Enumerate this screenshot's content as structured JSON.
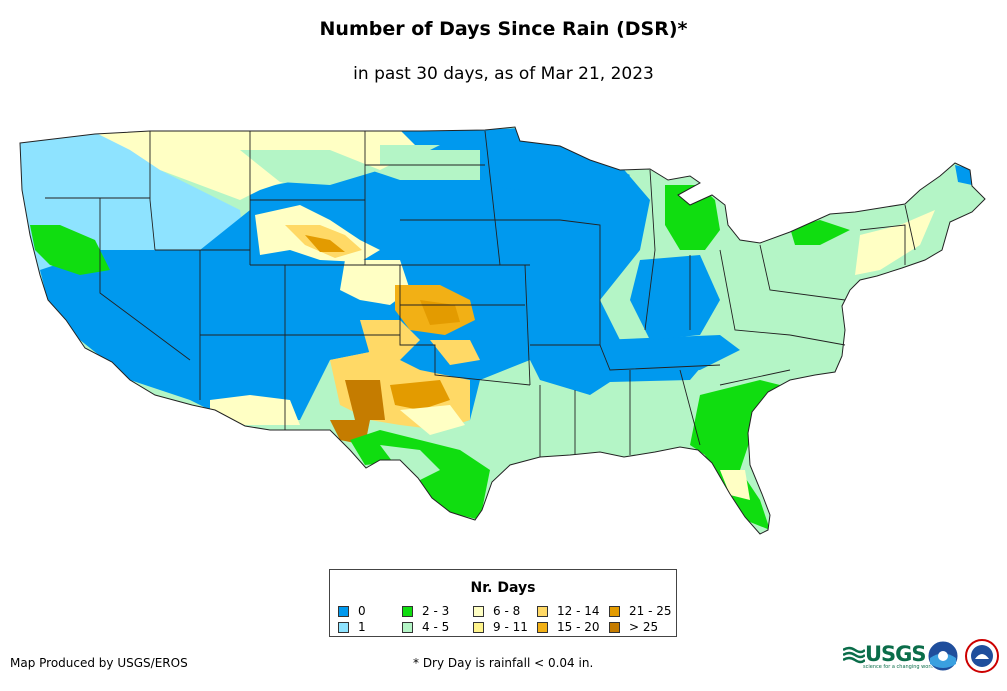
{
  "title": "Number of Days Since Rain (DSR)*",
  "subtitle": "in past 30 days, as of Mar 21, 2023",
  "legend": {
    "title": "Nr. Days",
    "items": [
      {
        "label": "0",
        "color": "#0099ee"
      },
      {
        "label": "1",
        "color": "#8ee3ff"
      },
      {
        "label": "2 - 3",
        "color": "#10dd10"
      },
      {
        "label": "4 - 5",
        "color": "#b4f5c6"
      },
      {
        "label": "6 - 8",
        "color": "#ffffc4"
      },
      {
        "label": "9 - 11",
        "color": "#fff48c"
      },
      {
        "label": "12 - 14",
        "color": "#ffd966"
      },
      {
        "label": "15 - 20",
        "color": "#f2b015"
      },
      {
        "label": "21 - 25",
        "color": "#e39b00"
      },
      {
        "label": "> 25",
        "color": "#c57c00"
      }
    ]
  },
  "credit": "Map Produced by USGS/EROS",
  "footnote": "* Dry Day is rainfall < 0.04 in.",
  "logos": {
    "usgs": "USGS",
    "usgs_tagline": "science for a changing world",
    "noaa_icon": "noaa-logo-icon",
    "nws_icon": "nws-logo-icon"
  }
}
